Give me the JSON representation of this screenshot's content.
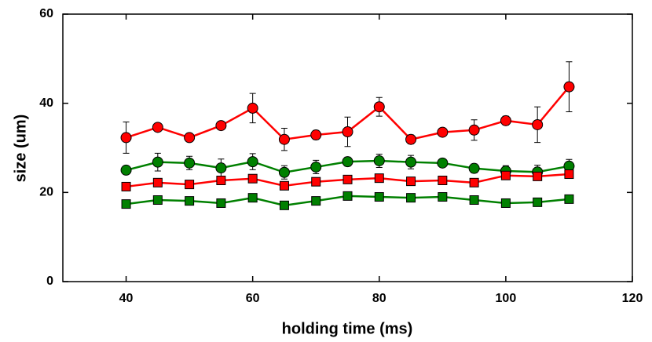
{
  "chart_data": {
    "type": "line",
    "xlabel": "holding time (ms)",
    "ylabel": "size (um)",
    "x": [
      40,
      45,
      50,
      55,
      60,
      65,
      70,
      75,
      80,
      85,
      90,
      95,
      100,
      105,
      110
    ],
    "series": [
      {
        "color": "#ff0000",
        "marker": "circle",
        "values": [
          32.3,
          34.6,
          32.3,
          35,
          38.9,
          31.9,
          32.9,
          33.6,
          39.2,
          31.9,
          33.5,
          34,
          36.1,
          35.2,
          43.7
        ],
        "errors": [
          3.5,
          0.5,
          0.7,
          0.8,
          3.3,
          2.5,
          1,
          3.3,
          2.1,
          1,
          0.7,
          2.3,
          1,
          4,
          5.6
        ]
      },
      {
        "color": "#008000",
        "marker": "circle",
        "values": [
          25,
          26.8,
          26.6,
          25.5,
          26.9,
          24.5,
          25.7,
          26.9,
          27.1,
          26.8,
          26.6,
          25.4,
          24.8,
          24.6,
          25.9
        ],
        "errors": [
          0.5,
          2,
          1.5,
          2,
          1.8,
          1.5,
          1.5,
          1,
          1.5,
          1.5,
          0.7,
          1,
          1.2,
          1.5,
          1.5
        ]
      },
      {
        "color": "#ff0000",
        "marker": "square",
        "values": [
          21.3,
          22.2,
          21.8,
          22.7,
          23.1,
          21.5,
          22.4,
          22.9,
          23.2,
          22.5,
          22.7,
          22.2,
          23.8,
          23.6,
          24.1
        ],
        "errors": [
          0.8,
          0.8,
          0.8,
          0.8,
          0.8,
          0.8,
          0.8,
          0.8,
          0.8,
          0.8,
          0.8,
          0.8,
          0.8,
          0.8,
          0.8
        ]
      },
      {
        "color": "#008000",
        "marker": "square",
        "values": [
          17.4,
          18.3,
          18.1,
          17.6,
          18.8,
          17.1,
          18.1,
          19.2,
          19,
          18.8,
          19,
          18.3,
          17.6,
          17.8,
          18.5
        ],
        "errors": [
          0.7,
          0.7,
          0.7,
          0.7,
          0.7,
          0.7,
          0.7,
          0.7,
          0.7,
          0.7,
          0.7,
          0.7,
          0.7,
          0.7,
          0.7
        ]
      }
    ],
    "xlim": [
      30,
      120
    ],
    "xticks": [
      40,
      60,
      80,
      100,
      120
    ],
    "ylim": [
      0,
      60
    ],
    "yticks": [
      0,
      20,
      40,
      60
    ]
  }
}
